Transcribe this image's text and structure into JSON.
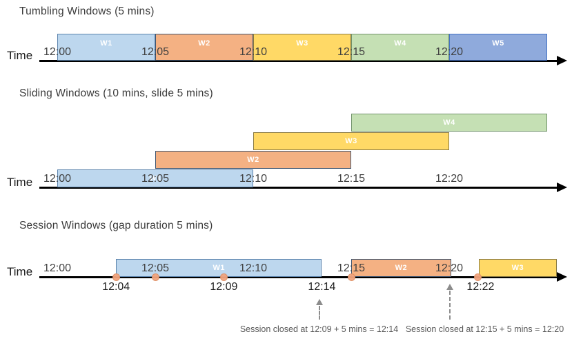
{
  "palette": {
    "blue": {
      "fill": "#BDD7EE",
      "border": "#5c84ad"
    },
    "orange": {
      "fill": "#F4B183",
      "border": "#3f5570"
    },
    "yellow": {
      "fill": "#FFD966",
      "border": "#8a7a42"
    },
    "green": {
      "fill": "#C5E0B4",
      "border": "#71926b"
    },
    "indigo": {
      "fill": "#8FAADC",
      "border": "#4472C4"
    },
    "event_dot": {
      "fill": "#F2A47E",
      "border": "#de8f64"
    },
    "axis": "#000000",
    "tick_text": "#3f3f3f",
    "annotation_text": "#595959",
    "dashed_arrow": "#8c8c8c",
    "window_label_text": "#ffffff"
  },
  "sections": [
    {
      "id": "tumbling",
      "title": "Tumbling Windows (5 mins)",
      "axis_label": "Time",
      "ticks": [
        {
          "min": 0,
          "label": "12:00"
        },
        {
          "min": 5,
          "label": "12:05"
        },
        {
          "min": 10,
          "label": "12:10"
        },
        {
          "min": 15,
          "label": "12:15"
        },
        {
          "min": 20,
          "label": "12:20"
        }
      ],
      "windows": [
        {
          "label": "W1",
          "start": 0,
          "end": 5,
          "color": "blue"
        },
        {
          "label": "W2",
          "start": 5,
          "end": 10,
          "color": "orange"
        },
        {
          "label": "W3",
          "start": 10,
          "end": 15,
          "color": "yellow"
        },
        {
          "label": "W4",
          "start": 15,
          "end": 20,
          "color": "green"
        },
        {
          "label": "W5",
          "start": 20,
          "end": 25,
          "color": "indigo"
        }
      ]
    },
    {
      "id": "sliding",
      "title": "Sliding Windows (10 mins, slide 5 mins)",
      "axis_label": "Time",
      "ticks": [
        {
          "min": 0,
          "label": "12:00"
        },
        {
          "min": 5,
          "label": "12:05"
        },
        {
          "min": 10,
          "label": "12:10"
        },
        {
          "min": 15,
          "label": "12:15"
        },
        {
          "min": 20,
          "label": "12:20"
        }
      ],
      "windows": [
        {
          "label": "W1",
          "start": 0,
          "end": 10,
          "color": "blue",
          "row": 0
        },
        {
          "label": "W2",
          "start": 5,
          "end": 15,
          "color": "orange",
          "row": 1
        },
        {
          "label": "W3",
          "start": 10,
          "end": 20,
          "color": "yellow",
          "row": 2
        },
        {
          "label": "W4",
          "start": 15,
          "end": 25,
          "color": "green",
          "row": 3
        }
      ]
    },
    {
      "id": "session",
      "title": "Session Windows (gap duration 5 mins)",
      "axis_label": "Time",
      "ticks": [
        {
          "min": 0,
          "label": "12:00"
        },
        {
          "min": 5,
          "label": "12:05"
        },
        {
          "min": 10,
          "label": "12:10"
        },
        {
          "min": 15,
          "label": "12:15"
        },
        {
          "min": 20,
          "label": "12:20"
        }
      ],
      "windows": [
        {
          "label": "W1",
          "start": 3,
          "end": 13.5,
          "color": "blue"
        },
        {
          "label": "W2",
          "start": 15,
          "end": 20.1,
          "color": "orange"
        },
        {
          "label": "W3",
          "start": 21.5,
          "end": 25.5,
          "color": "yellow"
        }
      ],
      "events": [
        3,
        5,
        8.5,
        15,
        21.45
      ],
      "event_labels": [
        {
          "min": 3,
          "label": "12:04"
        },
        {
          "min": 8.5,
          "label": "12:09"
        },
        {
          "min": 13.5,
          "label": "12:14"
        },
        {
          "min": 21.6,
          "label": "12:22"
        }
      ],
      "callouts": [
        {
          "text": "Session closed at 12:09 + 5 mins = 12:14"
        },
        {
          "text": "Session closed at 12:15 + 5 mins = 12:20"
        }
      ]
    }
  ]
}
